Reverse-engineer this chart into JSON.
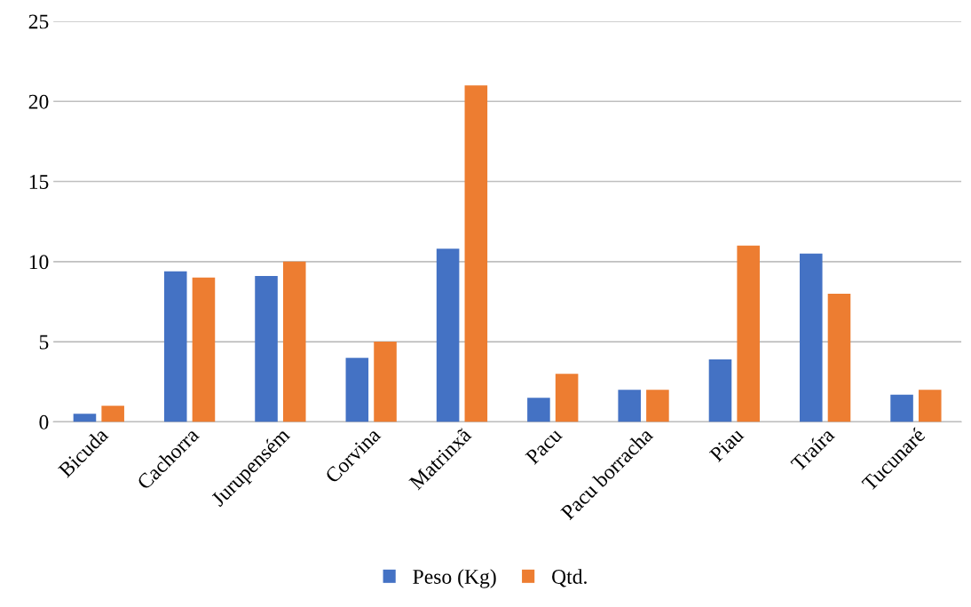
{
  "chart_data": {
    "type": "bar",
    "categories": [
      "Bicuda",
      "Cachorra",
      "Jurupensém",
      "Corvina",
      "Matrinxã",
      "Pacu",
      "Pacu borracha",
      "Piau",
      "Traíra",
      "Tucunaré"
    ],
    "series": [
      {
        "name": "Peso (Kg)",
        "color": "#4472c4",
        "values": [
          0.5,
          9.4,
          9.1,
          4,
          10.8,
          1.5,
          2,
          3.9,
          10.5,
          1.7
        ]
      },
      {
        "name": "Qtd.",
        "color": "#ed7d31",
        "values": [
          1,
          9,
          10,
          5,
          21,
          3,
          2,
          11,
          8,
          2
        ]
      }
    ],
    "ylim": [
      0,
      25
    ],
    "yticks": [
      0,
      5,
      10,
      15,
      20,
      25
    ],
    "grid": "y",
    "legend": "bottom"
  }
}
